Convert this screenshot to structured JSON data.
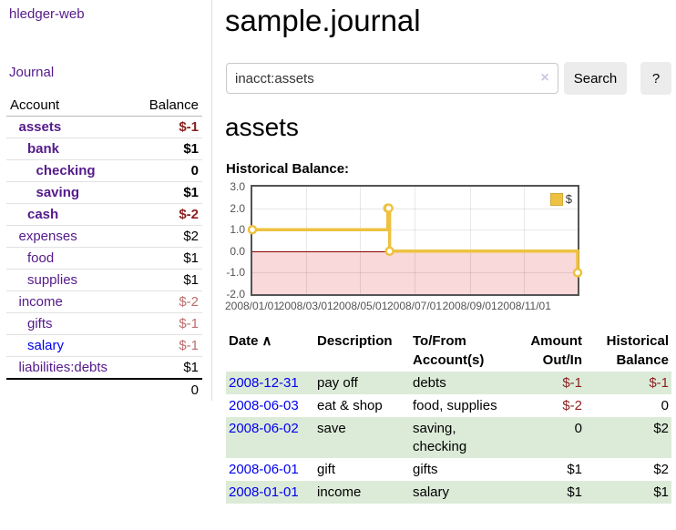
{
  "app": {
    "brand": "hledger-web",
    "nav_journal": "Journal"
  },
  "sidebar": {
    "header": {
      "account": "Account",
      "balance": "Balance"
    },
    "accounts": [
      {
        "name": "assets",
        "indent": 1,
        "balance": "$-1",
        "bold": true,
        "balance_style": "neg-strong",
        "link_color": "purple"
      },
      {
        "name": "bank",
        "indent": 2,
        "balance": "$1",
        "bold": true,
        "balance_style": "pos",
        "link_color": "purple"
      },
      {
        "name": "checking",
        "indent": 3,
        "balance": "0",
        "bold": true,
        "balance_style": "pos",
        "link_color": "purple"
      },
      {
        "name": "saving",
        "indent": 3,
        "balance": "$1",
        "bold": true,
        "balance_style": "pos",
        "link_color": "purple"
      },
      {
        "name": "cash",
        "indent": 2,
        "balance": "$-2",
        "bold": true,
        "balance_style": "neg-strong",
        "link_color": "purple"
      },
      {
        "name": "expenses",
        "indent": 1,
        "balance": "$2",
        "bold": false,
        "balance_style": "pos",
        "link_color": "purple"
      },
      {
        "name": "food",
        "indent": 2,
        "balance": "$1",
        "bold": false,
        "balance_style": "pos",
        "link_color": "purple"
      },
      {
        "name": "supplies",
        "indent": 2,
        "balance": "$1",
        "bold": false,
        "balance_style": "pos",
        "link_color": "purple"
      },
      {
        "name": "income",
        "indent": 1,
        "balance": "$-2",
        "bold": false,
        "balance_style": "neg-faded",
        "link_color": "purple"
      },
      {
        "name": "gifts",
        "indent": 2,
        "balance": "$-1",
        "bold": false,
        "balance_style": "neg-faded",
        "link_color": "purple"
      },
      {
        "name": "salary",
        "indent": 2,
        "balance": "$-1",
        "bold": false,
        "balance_style": "neg-faded",
        "link_color": "blue"
      },
      {
        "name": "liabilities:debts",
        "indent": 1,
        "balance": "$1",
        "bold": false,
        "balance_style": "pos",
        "link_color": "purple"
      }
    ],
    "total": "0"
  },
  "header": {
    "title": "sample.journal"
  },
  "search": {
    "value": "inacct:assets",
    "clear_icon": "×",
    "button_label": "Search",
    "help_label": "?"
  },
  "account_page": {
    "title": "assets",
    "chart_label": "Historical Balance:"
  },
  "chart_data": {
    "type": "line",
    "step": true,
    "title": "Historical Balance",
    "x_range": [
      "2008-01-01",
      "2008-12-31"
    ],
    "ylim": [
      -2,
      3
    ],
    "y_ticks": [
      "3.0",
      "2.0",
      "1.0",
      "0.0",
      "-1.0",
      "-2.0"
    ],
    "x_ticks": [
      {
        "label": "2008/01/01",
        "date": "2008-01-01"
      },
      {
        "label": "2008/03/01",
        "date": "2008-03-01"
      },
      {
        "label": "2008/05/01",
        "date": "2008-05-01"
      },
      {
        "label": "2008/07/01",
        "date": "2008-07-01"
      },
      {
        "label": "2008/09/01",
        "date": "2008-09-01"
      },
      {
        "label": "2008/11/01",
        "date": "2008-11-01"
      }
    ],
    "series": [
      {
        "name": "$",
        "color": "#edc240",
        "points": [
          [
            "2008-01-01",
            1
          ],
          [
            "2008-06-01",
            2
          ],
          [
            "2008-06-02",
            2
          ],
          [
            "2008-06-03",
            0
          ],
          [
            "2008-12-31",
            -1
          ]
        ]
      }
    ],
    "negative_region_color": "#f9d9d9",
    "zero_line_color": "#8b0000",
    "grid": true,
    "legend_position": "top-right"
  },
  "register": {
    "columns": [
      {
        "label": "Date",
        "align": "left",
        "sortable": true
      },
      {
        "label": "Description",
        "align": "left"
      },
      {
        "label": "To/From Account(s)",
        "align": "left"
      },
      {
        "label": "Amount Out/In",
        "align": "right"
      },
      {
        "label": "Historical Balance",
        "align": "right"
      }
    ],
    "sort_icon": "∧",
    "rows": [
      {
        "date": "2008-12-31",
        "description": "pay off",
        "accounts": "debts",
        "amount": "$-1",
        "balance": "$-1",
        "amount_neg": true,
        "balance_neg": true,
        "shaded": true
      },
      {
        "date": "2008-06-03",
        "description": "eat & shop",
        "accounts": "food, supplies",
        "amount": "$-2",
        "balance": "0",
        "amount_neg": true,
        "balance_neg": false,
        "shaded": false
      },
      {
        "date": "2008-06-02",
        "description": "save",
        "accounts": "saving,\nchecking",
        "amount": "0",
        "balance": "$2",
        "amount_neg": false,
        "balance_neg": false,
        "shaded": true
      },
      {
        "date": "2008-06-01",
        "description": "gift",
        "accounts": "gifts",
        "amount": "$1",
        "balance": "$2",
        "amount_neg": false,
        "balance_neg": false,
        "shaded": false
      },
      {
        "date": "2008-01-01",
        "description": "income",
        "accounts": "salary",
        "amount": "$1",
        "balance": "$1",
        "amount_neg": false,
        "balance_neg": false,
        "shaded": true
      }
    ]
  },
  "colors": {
    "link_visited": "#551a8b",
    "link_unvisited": "#0000ee",
    "negative_strong": "#8b1f1f",
    "negative_faded": "#bd6d6d",
    "row_shade_green": "#dcebd8",
    "chart_line": "#edc240",
    "chart_border": "#545454"
  }
}
